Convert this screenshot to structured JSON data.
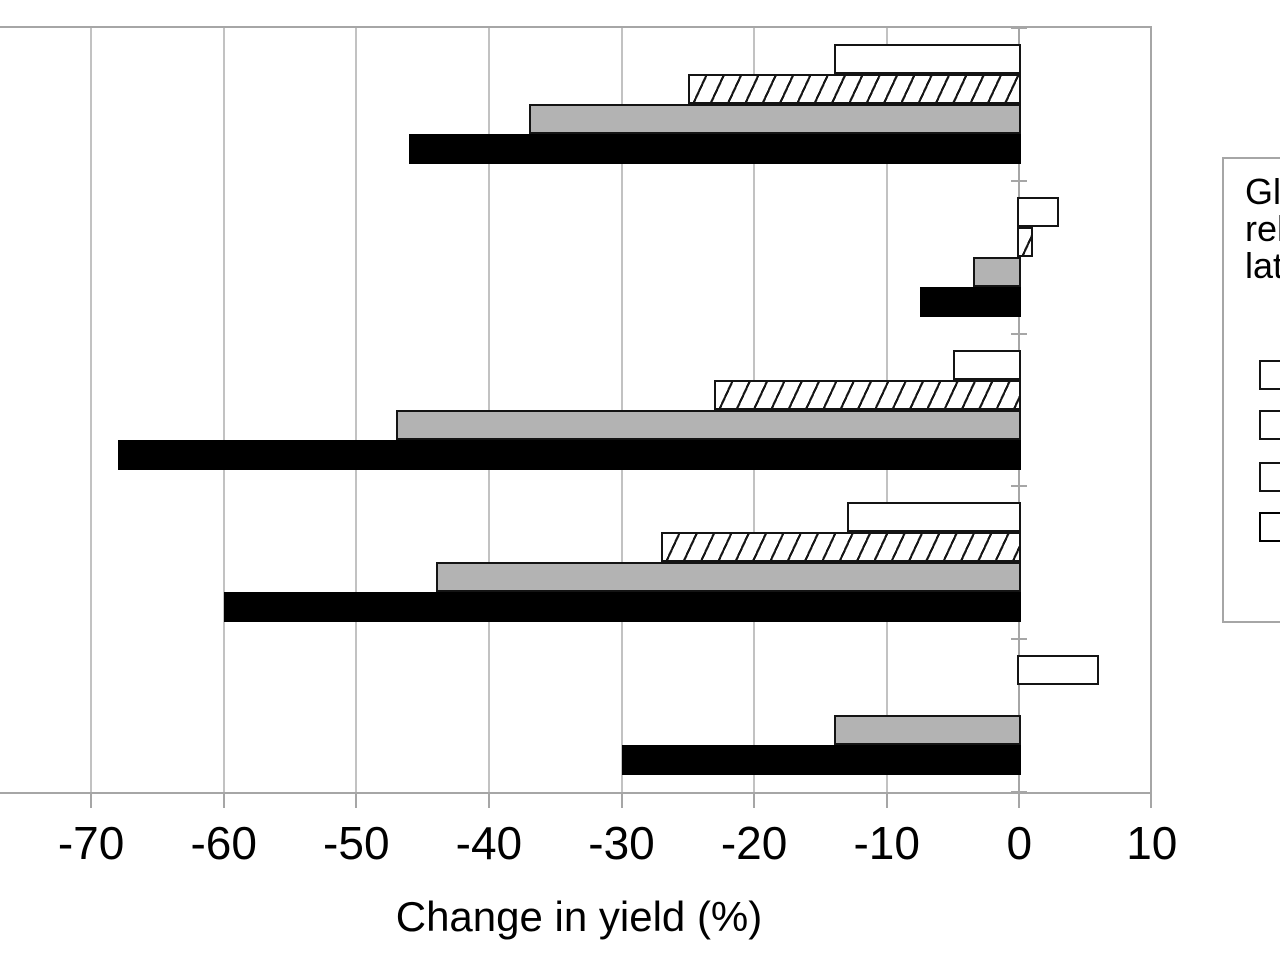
{
  "chart_data": {
    "type": "bar",
    "orientation": "horizontal",
    "xlabel": "Change in yield (%)",
    "x_ticks": [
      -70,
      -60,
      -50,
      -40,
      -30,
      -20,
      -10,
      0,
      10
    ],
    "x_tick_labels": [
      "-70",
      "-60",
      "-50",
      "-40",
      "-30",
      "-20",
      "-10",
      "0",
      "10"
    ],
    "xlim_visible": [
      -77,
      10
    ],
    "grid": true,
    "categories": [
      "",
      "",
      "",
      "",
      ""
    ],
    "categories_note": "category labels are cropped outside the left edge of the screenshot",
    "series": [
      {
        "name": "white (open bar)",
        "swatch": "white",
        "values": [
          -14,
          3,
          -5,
          -13,
          6
        ]
      },
      {
        "name": "hatched (diagonal bar)",
        "swatch": "hatch",
        "values": [
          -25,
          1,
          -23,
          -27,
          null
        ]
      },
      {
        "name": "gray (solid bar)",
        "swatch": "gray",
        "values": [
          -37,
          -3.5,
          -47,
          -44,
          -14
        ]
      },
      {
        "name": "black (solid bar)",
        "swatch": "black",
        "values": [
          -46,
          -7.5,
          -68,
          -60,
          -30
        ]
      }
    ],
    "legend": {
      "position": "right",
      "clipped_at_right_edge": true,
      "title_visible_lines": [
        "Gl",
        "rel",
        "lat"
      ],
      "swatches": [
        "white",
        "hatch",
        "gray",
        "black"
      ]
    }
  },
  "axis": {
    "title": "Change in yield (%)"
  },
  "legend": {
    "line1": "Gl",
    "line2": "rel",
    "line3": "lat"
  },
  "colors": {
    "bar_white_fill": "#ffffff",
    "bar_gray_fill": "#b3b3b3",
    "bar_black_fill": "#000000",
    "bar_border": "#141414",
    "hatch_line": "#161616",
    "gridline": "#c2c2c2",
    "frame_and_axis": "#a6a6a6",
    "text": "#000000",
    "background": "#ffffff"
  }
}
